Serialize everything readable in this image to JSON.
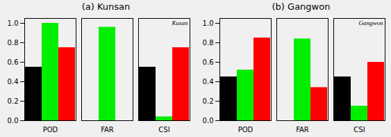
{
  "chart_data": [
    {
      "type": "bar",
      "title": "(a)  Kunsan",
      "annotation": "Kusan",
      "categories": [
        "POD",
        "FAR",
        "CSI"
      ],
      "series": [
        {
          "color": "black",
          "values": [
            0.55,
            0.0,
            0.55
          ]
        },
        {
          "color": "#00ee00",
          "values": [
            1.0,
            0.96,
            0.04
          ]
        },
        {
          "color": "red",
          "values": [
            0.75,
            0.0,
            0.75
          ]
        }
      ],
      "ylim": [
        0.0,
        1.05
      ],
      "yticks": [
        {
          "value": 0.0,
          "label": "0.0"
        },
        0.2,
        0.4,
        0.6,
        0.8,
        {
          "value": 1.0,
          "label": "1.0"
        }
      ]
    },
    {
      "type": "bar",
      "title": "(b)  Gangwon",
      "annotation": "Gangwon",
      "categories": [
        "POD",
        "FAR",
        "CSI"
      ],
      "series": [
        {
          "color": "black",
          "values": [
            0.45,
            0.0,
            0.45
          ]
        },
        {
          "color": "#00ee00",
          "values": [
            0.52,
            0.84,
            0.15
          ]
        },
        {
          "color": "red",
          "values": [
            0.85,
            0.34,
            0.6
          ]
        }
      ],
      "ylim": [
        0.0,
        1.05
      ],
      "yticks": [
        {
          "value": 0.0,
          "label": "0.0"
        },
        0.2,
        0.4,
        0.6,
        0.8,
        {
          "value": 1.0,
          "label": "1.0"
        }
      ]
    }
  ]
}
